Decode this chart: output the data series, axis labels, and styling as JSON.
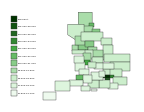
{
  "background_color": "#ffffff",
  "legend_colors": [
    "#003300",
    "#115511",
    "#226622",
    "#338833",
    "#44aa44",
    "#66bb66",
    "#88cc88",
    "#aaddaa",
    "#cceecc",
    "#ddf5dd",
    "#eefaee"
  ],
  "legend_labels": [
    "£16,500+",
    "£15,000-£6,500",
    "£14,000-£5,500",
    "£13,000-£4,500",
    "£12,000-£3,500",
    "£11,000-£2,500",
    "£10,000-£1,500",
    "£9,000-£1,500",
    "£8,000-£0,500",
    "£7,000-£0,000",
    "£6,500-£7,000"
  ],
  "border_color": "#222222",
  "map_bg": "#f8fff8"
}
